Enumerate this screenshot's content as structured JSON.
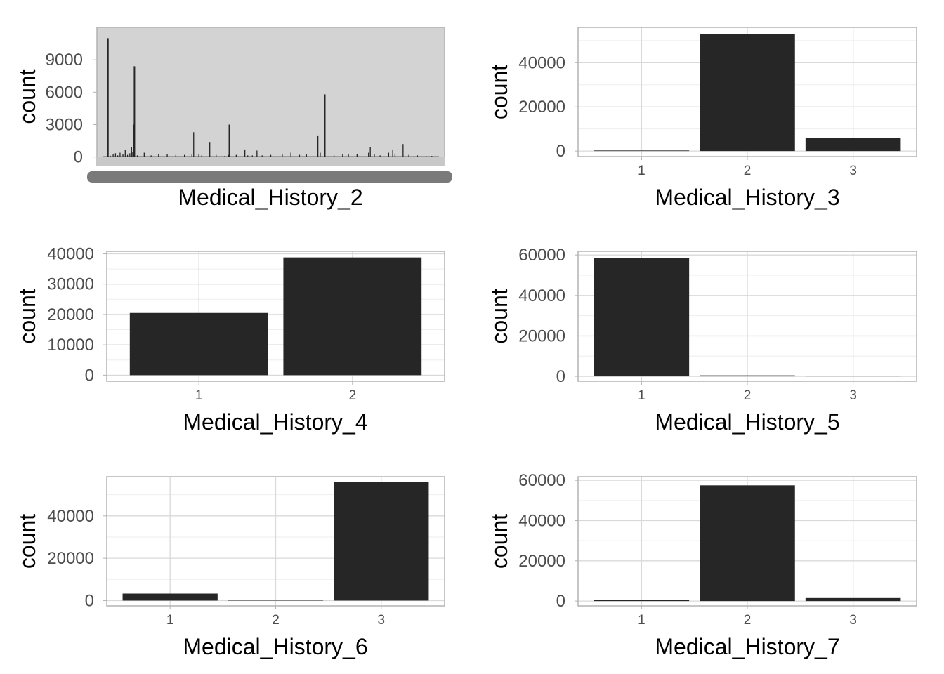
{
  "colors": {
    "bar": "#262626",
    "grid": "#d9d9d9",
    "grid_minor": "#eeeeee",
    "border": "#b3b3b3",
    "mh2_panel": "#d3d3d3"
  },
  "chart_data": [
    {
      "type": "bar",
      "xlabel": "Medical_History_2",
      "ylabel": "count",
      "yticks": [
        0,
        3000,
        6000,
        9000
      ],
      "ylim": [
        -800,
        12000
      ],
      "x_tick_labels_illegible": true,
      "n_categories": 580,
      "spikes": [
        {
          "x": 7,
          "y": 11000
        },
        {
          "x": 11,
          "y": 120
        },
        {
          "x": 16,
          "y": 250
        },
        {
          "x": 20,
          "y": 350
        },
        {
          "x": 24,
          "y": 150
        },
        {
          "x": 28,
          "y": 400
        },
        {
          "x": 33,
          "y": 250
        },
        {
          "x": 37,
          "y": 650
        },
        {
          "x": 41,
          "y": 200
        },
        {
          "x": 45,
          "y": 350
        },
        {
          "x": 48,
          "y": 900
        },
        {
          "x": 50,
          "y": 500
        },
        {
          "x": 52,
          "y": 3000
        },
        {
          "x": 53,
          "y": 8400
        },
        {
          "x": 58,
          "y": 150
        },
        {
          "x": 70,
          "y": 400
        },
        {
          "x": 82,
          "y": 150
        },
        {
          "x": 95,
          "y": 300
        },
        {
          "x": 110,
          "y": 250
        },
        {
          "x": 125,
          "y": 200
        },
        {
          "x": 140,
          "y": 200
        },
        {
          "x": 153,
          "y": 250
        },
        {
          "x": 156,
          "y": 2300
        },
        {
          "x": 165,
          "y": 300
        },
        {
          "x": 170,
          "y": 150
        },
        {
          "x": 184,
          "y": 1400
        },
        {
          "x": 195,
          "y": 200
        },
        {
          "x": 210,
          "y": 100
        },
        {
          "x": 216,
          "y": 200
        },
        {
          "x": 218,
          "y": 3000
        },
        {
          "x": 230,
          "y": 200
        },
        {
          "x": 245,
          "y": 700
        },
        {
          "x": 250,
          "y": 150
        },
        {
          "x": 258,
          "y": 150
        },
        {
          "x": 266,
          "y": 600
        },
        {
          "x": 275,
          "y": 150
        },
        {
          "x": 290,
          "y": 200
        },
        {
          "x": 310,
          "y": 300
        },
        {
          "x": 325,
          "y": 400
        },
        {
          "x": 340,
          "y": 200
        },
        {
          "x": 352,
          "y": 300
        },
        {
          "x": 372,
          "y": 2000
        },
        {
          "x": 376,
          "y": 400
        },
        {
          "x": 384,
          "y": 5800
        },
        {
          "x": 400,
          "y": 150
        },
        {
          "x": 415,
          "y": 250
        },
        {
          "x": 425,
          "y": 300
        },
        {
          "x": 440,
          "y": 250
        },
        {
          "x": 460,
          "y": 400
        },
        {
          "x": 463,
          "y": 950
        },
        {
          "x": 470,
          "y": 300
        },
        {
          "x": 480,
          "y": 150
        },
        {
          "x": 495,
          "y": 400
        },
        {
          "x": 502,
          "y": 700
        },
        {
          "x": 506,
          "y": 250
        },
        {
          "x": 520,
          "y": 1200
        },
        {
          "x": 530,
          "y": 200
        },
        {
          "x": 545,
          "y": 150
        },
        {
          "x": 560,
          "y": 100
        },
        {
          "x": 570,
          "y": 100
        }
      ]
    },
    {
      "type": "bar",
      "xlabel": "Medical_History_3",
      "ylabel": "count",
      "categories": [
        "1",
        "2",
        "3"
      ],
      "values": [
        20,
        53000,
        6000
      ],
      "yticks": [
        0,
        20000,
        40000
      ],
      "ylim": [
        -2500,
        56000
      ]
    },
    {
      "type": "bar",
      "xlabel": "Medical_History_4",
      "ylabel": "count",
      "categories": [
        "1",
        "2"
      ],
      "values": [
        20500,
        38800
      ],
      "yticks": [
        0,
        10000,
        20000,
        30000,
        40000
      ],
      "ylim": [
        -2000,
        40800
      ]
    },
    {
      "type": "bar",
      "xlabel": "Medical_History_5",
      "ylabel": "count",
      "categories": [
        "1",
        "2",
        "3"
      ],
      "values": [
        58600,
        500,
        10
      ],
      "yticks": [
        0,
        20000,
        40000,
        60000
      ],
      "ylim": [
        -2400,
        61800
      ]
    },
    {
      "type": "bar",
      "xlabel": "Medical_History_6",
      "ylabel": "count",
      "categories": [
        "1",
        "2",
        "3"
      ],
      "values": [
        3300,
        30,
        55900
      ],
      "yticks": [
        0,
        20000,
        40000
      ],
      "ylim": [
        -2500,
        58500
      ]
    },
    {
      "type": "bar",
      "xlabel": "Medical_History_7",
      "ylabel": "count",
      "categories": [
        "1",
        "2",
        "3"
      ],
      "values": [
        400,
        57500,
        1500
      ],
      "yticks": [
        0,
        20000,
        40000,
        60000
      ],
      "ylim": [
        -2400,
        61800
      ]
    }
  ]
}
